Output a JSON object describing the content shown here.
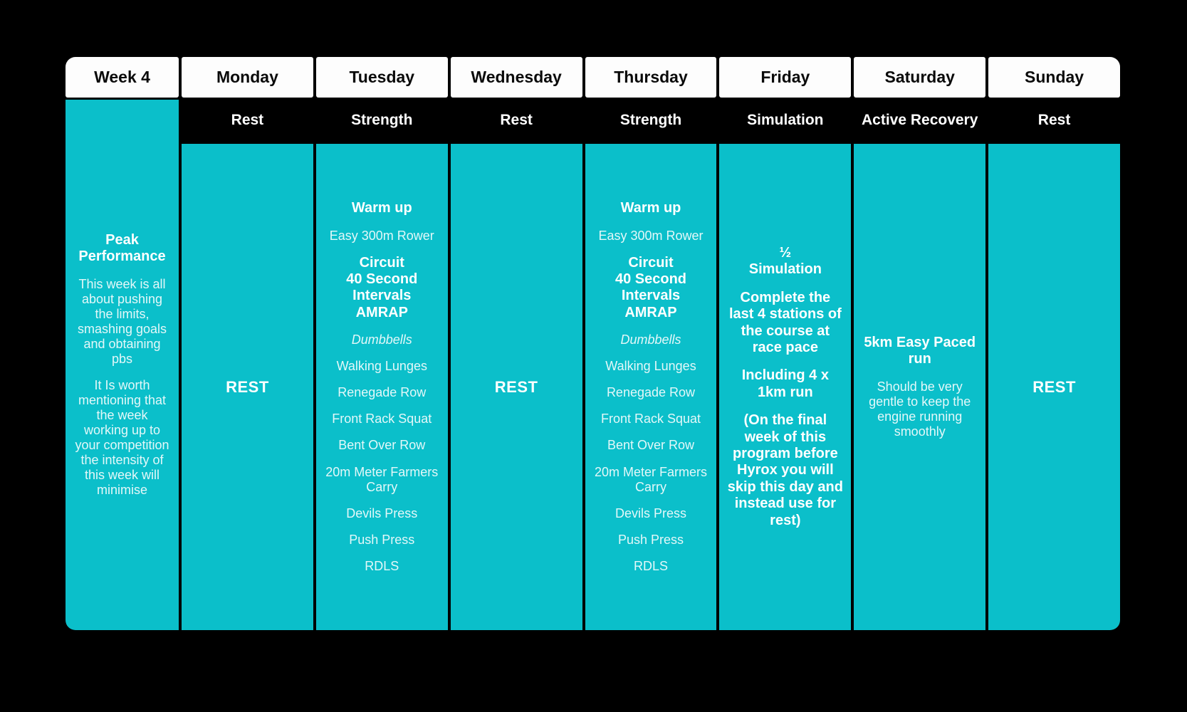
{
  "palette": {
    "teal": "#0bbfca",
    "background": "#000000",
    "header_bg": "#fdfdfd",
    "header_text": "#0a0a0a",
    "body_text": "#ffffff"
  },
  "week": {
    "label": "Week 4",
    "items": [
      {
        "text": "Peak Performance",
        "style": "bold"
      },
      {
        "text": "This week is all about pushing the limits, smashing goals and obtaining pbs",
        "style": "regular"
      },
      {
        "text": "It Is worth mentioning that the week working up to your competition the intensity of this week will minimise",
        "style": "regular"
      }
    ]
  },
  "days": [
    {
      "name": "Monday",
      "type": "Rest",
      "items": [
        {
          "text": "REST",
          "style": "rest"
        }
      ]
    },
    {
      "name": "Tuesday",
      "type": "Strength",
      "items": [
        {
          "text": "Warm up",
          "style": "bold"
        },
        {
          "text": "Easy 300m Rower",
          "style": "regular"
        },
        {
          "text": "Circuit\n40 Second\nIntervals\nAMRAP",
          "style": "bold"
        },
        {
          "text": "Dumbbells",
          "style": "italic"
        },
        {
          "text": "Walking Lunges",
          "style": "regular"
        },
        {
          "text": "Renegade Row",
          "style": "regular"
        },
        {
          "text": "Front Rack Squat",
          "style": "regular"
        },
        {
          "text": "Bent Over Row",
          "style": "regular"
        },
        {
          "text": "20m Meter Farmers Carry",
          "style": "regular"
        },
        {
          "text": "Devils Press",
          "style": "regular"
        },
        {
          "text": "Push Press",
          "style": "regular"
        },
        {
          "text": "RDLS",
          "style": "regular"
        }
      ]
    },
    {
      "name": "Wednesday",
      "type": "Rest",
      "items": [
        {
          "text": "REST",
          "style": "rest"
        }
      ]
    },
    {
      "name": "Thursday",
      "type": "Strength",
      "items": [
        {
          "text": "Warm up",
          "style": "bold"
        },
        {
          "text": "Easy 300m Rower",
          "style": "regular"
        },
        {
          "text": "Circuit\n40 Second\nIntervals\nAMRAP",
          "style": "bold"
        },
        {
          "text": "Dumbbells",
          "style": "italic"
        },
        {
          "text": "Walking Lunges",
          "style": "regular"
        },
        {
          "text": "Renegade Row",
          "style": "regular"
        },
        {
          "text": "Front Rack Squat",
          "style": "regular"
        },
        {
          "text": "Bent Over Row",
          "style": "regular"
        },
        {
          "text": "20m Meter Farmers Carry",
          "style": "regular"
        },
        {
          "text": "Devils Press",
          "style": "regular"
        },
        {
          "text": "Push Press",
          "style": "regular"
        },
        {
          "text": "RDLS",
          "style": "regular"
        }
      ]
    },
    {
      "name": "Friday",
      "type": "Simulation",
      "items": [
        {
          "text": "½\nSimulation",
          "style": "bold"
        },
        {
          "text": "Complete the last 4 stations of the course at race pace",
          "style": "bold"
        },
        {
          "text": "Including 4 x 1km run",
          "style": "bold"
        },
        {
          "text": "(On the final week of this program before Hyrox you will skip this day and instead use for rest)",
          "style": "bold"
        }
      ]
    },
    {
      "name": "Saturday",
      "type": "Active Recovery",
      "items": [
        {
          "text": "5km Easy Paced run",
          "style": "bold"
        },
        {
          "text": "Should be very gentle to keep the engine running smoothly",
          "style": "regular"
        }
      ]
    },
    {
      "name": "Sunday",
      "type": "Rest",
      "items": [
        {
          "text": "REST",
          "style": "rest"
        }
      ]
    }
  ]
}
